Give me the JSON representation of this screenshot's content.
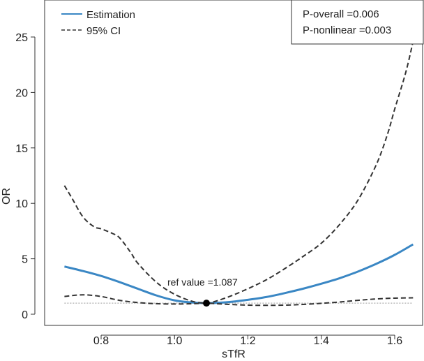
{
  "chart_data": {
    "type": "line",
    "title": "",
    "xlabel": "sTfR",
    "ylabel": "OR",
    "xlim": [
      0.66,
      1.68
    ],
    "ylim": [
      -0.5,
      27.5
    ],
    "x_ticks": [
      0.8,
      1.0,
      1.2,
      1.4,
      1.6
    ],
    "x_tick_labels": [
      "0.8",
      "1.0",
      "1.2",
      "1.4",
      "1.6"
    ],
    "y_ticks": [
      0,
      5,
      10,
      15,
      20,
      25
    ],
    "y_tick_labels": [
      "0",
      "5",
      "10",
      "15",
      "20",
      "25"
    ],
    "reference_line_y": 1,
    "ref_point": {
      "x": 1.087,
      "y": 1
    },
    "ref_label": "ref value =1.087",
    "legend": {
      "position": "top-left",
      "entries": [
        {
          "label": "Estimation",
          "style": "solid",
          "color": "#3a87c4"
        },
        {
          "label": "95% CI",
          "style": "dashed",
          "color": "#333333"
        }
      ]
    },
    "stats_box": {
      "position": "top-right",
      "lines": [
        "P-overall =0.006",
        "P-nonlinear =0.003"
      ]
    },
    "series": [
      {
        "name": "Estimation",
        "style": "solid",
        "color": "#3a87c4",
        "x": [
          0.7,
          0.75,
          0.8,
          0.85,
          0.9,
          0.95,
          1.0,
          1.05,
          1.087,
          1.1,
          1.15,
          1.2,
          1.25,
          1.3,
          1.35,
          1.4,
          1.45,
          1.5,
          1.55,
          1.6,
          1.65
        ],
        "y": [
          4.3,
          3.9,
          3.45,
          2.9,
          2.3,
          1.7,
          1.25,
          1.05,
          1.0,
          1.0,
          1.1,
          1.3,
          1.55,
          1.9,
          2.3,
          2.75,
          3.25,
          3.85,
          4.55,
          5.35,
          6.3
        ]
      },
      {
        "name": "95% CI upper",
        "style": "dashed",
        "color": "#333333",
        "x": [
          0.7,
          0.72,
          0.75,
          0.78,
          0.8,
          0.83,
          0.85,
          0.88,
          0.9,
          0.95,
          1.0,
          1.05,
          1.087,
          1.1,
          1.15,
          1.2,
          1.25,
          1.3,
          1.35,
          1.4,
          1.45,
          1.5,
          1.55,
          1.58,
          1.6,
          1.63,
          1.65
        ],
        "y": [
          11.6,
          10.5,
          8.8,
          7.9,
          7.7,
          7.3,
          6.9,
          5.6,
          4.6,
          2.9,
          1.8,
          1.15,
          1.0,
          1.05,
          1.6,
          2.3,
          3.1,
          4.1,
          5.2,
          6.4,
          8.1,
          10.3,
          13.5,
          16.2,
          18.5,
          21.8,
          24.6
        ]
      },
      {
        "name": "95% CI lower",
        "style": "dashed",
        "color": "#333333",
        "x": [
          0.7,
          0.75,
          0.8,
          0.85,
          0.9,
          0.95,
          1.0,
          1.05,
          1.087,
          1.1,
          1.15,
          1.2,
          1.25,
          1.3,
          1.35,
          1.4,
          1.45,
          1.5,
          1.55,
          1.6,
          1.65
        ],
        "y": [
          1.6,
          1.75,
          1.6,
          1.25,
          1.05,
          0.95,
          0.92,
          0.95,
          1.0,
          0.98,
          0.88,
          0.82,
          0.8,
          0.82,
          0.88,
          0.98,
          1.1,
          1.25,
          1.38,
          1.45,
          1.48
        ]
      }
    ]
  }
}
